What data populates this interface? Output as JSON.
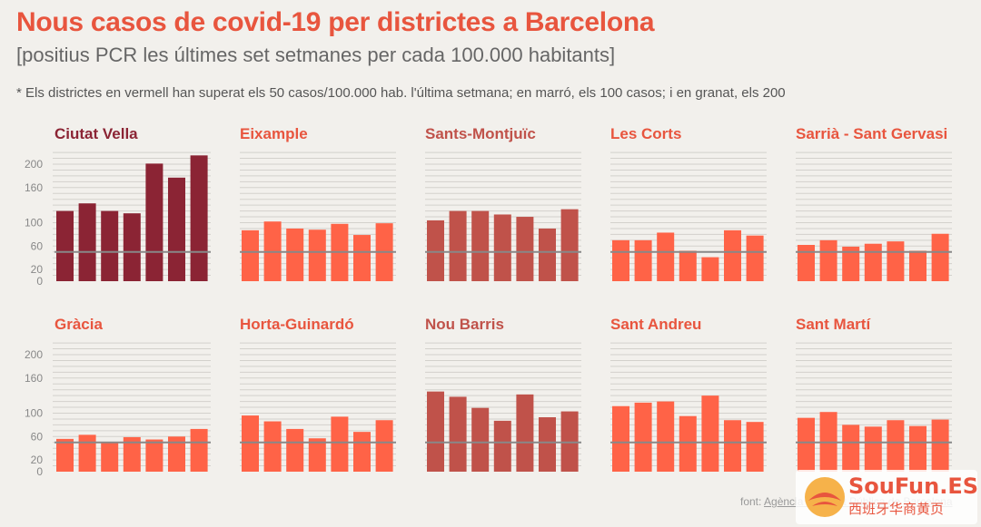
{
  "header": {
    "title": "Nous casos de covid-19 per districtes a Barcelona",
    "subtitle": "[positius PCR les últimes set setmanes per cada 100.000 habitants]",
    "note": "* Els districtes en vermell han superat els 50 casos/100.000 hab. l'última setmana; en marró, els 100 casos; i en granat, els 200"
  },
  "footer": {
    "source_prefix": "font: ",
    "source_name": "Agència de Salut Pública de Barcelona"
  },
  "watermark": {
    "brand": "SouFun.ES",
    "tagline": "西班牙华商黄页"
  },
  "colors": {
    "red": "#ff6347",
    "brown": "#c0524a",
    "granat": "#8b2434",
    "title_red": "#e8553e",
    "reference_line": "#888888",
    "grid": "#d3d1cc"
  },
  "chart_data": {
    "type": "bar",
    "layout": "small-multiples",
    "y_ticks": [
      0,
      20,
      60,
      100,
      160,
      200
    ],
    "ylim": [
      0,
      220
    ],
    "reference_line": 50,
    "grid": true,
    "districts": [
      {
        "name": "Ciutat Vella",
        "category": "granat",
        "values": [
          120,
          133,
          120,
          116,
          201,
          177,
          215
        ]
      },
      {
        "name": "Eixample",
        "category": "red",
        "values": [
          87,
          102,
          90,
          88,
          98,
          79,
          99
        ]
      },
      {
        "name": "Sants-Montjuïc",
        "category": "brown",
        "values": [
          104,
          120,
          120,
          114,
          110,
          90,
          123
        ]
      },
      {
        "name": "Les Corts",
        "category": "red",
        "values": [
          70,
          70,
          83,
          52,
          41,
          87,
          78
        ]
      },
      {
        "name": "Sarrià - Sant Gervasi",
        "category": "red",
        "values": [
          62,
          70,
          59,
          64,
          68,
          52,
          81
        ]
      },
      {
        "name": "Gràcia",
        "category": "red",
        "values": [
          56,
          63,
          50,
          59,
          55,
          60,
          73
        ]
      },
      {
        "name": "Horta-Guinardó",
        "category": "red",
        "values": [
          96,
          86,
          73,
          57,
          94,
          68,
          88
        ]
      },
      {
        "name": "Nou Barris",
        "category": "brown",
        "values": [
          137,
          128,
          109,
          87,
          132,
          93,
          103
        ]
      },
      {
        "name": "Sant Andreu",
        "category": "red",
        "values": [
          112,
          118,
          120,
          95,
          130,
          88,
          85
        ]
      },
      {
        "name": "Sant Martí",
        "category": "red",
        "values": [
          92,
          102,
          80,
          77,
          88,
          78,
          89
        ]
      }
    ]
  }
}
